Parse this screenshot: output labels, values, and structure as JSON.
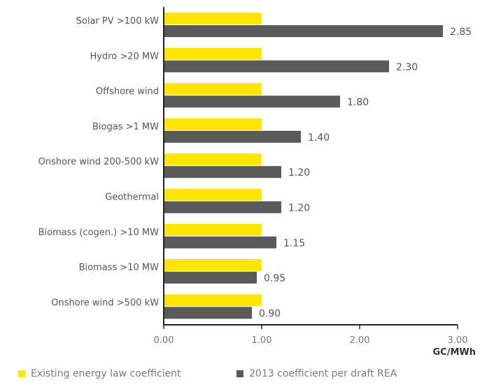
{
  "chart_data": {
    "type": "bar",
    "orientation": "horizontal",
    "categories": [
      "Solar PV >100 kW",
      "Hydro >20 MW",
      "Offshore wind",
      "Biogas >1 MW",
      "Onshore wind 200-500 kW",
      "Geothermal",
      "Biomass (cogen.) >10 MW",
      "Biomass >10 MW",
      "Onshore wind >500 kW"
    ],
    "series": [
      {
        "name": "Existing energy law coefficient",
        "color": "#FFE600",
        "values": [
          1,
          1,
          1,
          1,
          1,
          1,
          1,
          1,
          1
        ]
      },
      {
        "name": "2013 coefficient per draft REA",
        "color": "#5A5A5A",
        "values": [
          2.85,
          2.3,
          1.8,
          1.4,
          1.2,
          1.2,
          1.15,
          0.95,
          0.9
        ]
      }
    ],
    "data_labels": [
      "2.85",
      "2.30",
      "1.80",
      "1.40",
      "1.20",
      "1.20",
      "1.15",
      "0.95",
      "0.90"
    ],
    "x_ticks": [
      "0.00",
      "1.00",
      "2.00",
      "3.00"
    ],
    "xlim": [
      0,
      3
    ],
    "xlabel": "GC/MWh",
    "title": "",
    "grid": false,
    "legend_position": "bottom"
  }
}
